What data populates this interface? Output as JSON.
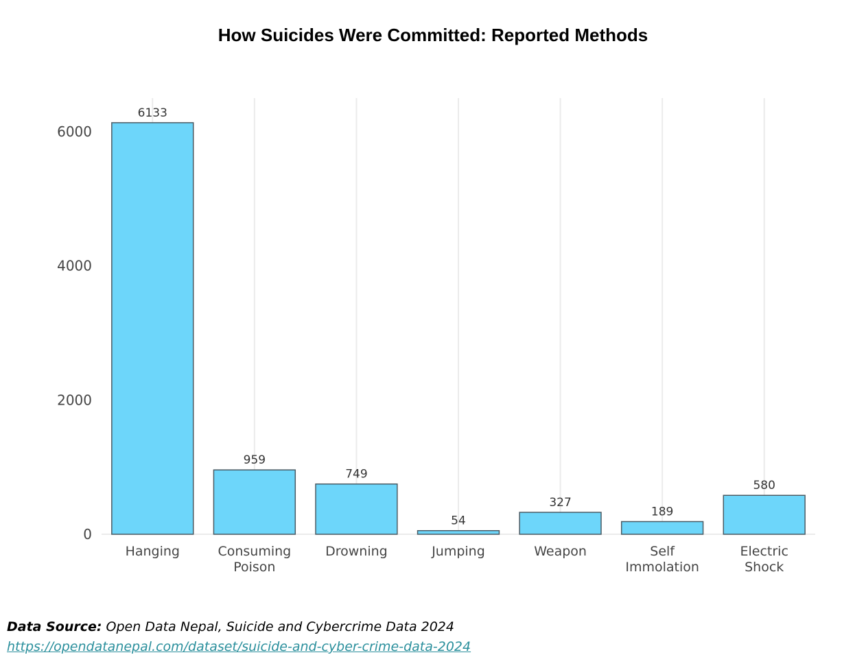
{
  "chart_data": {
    "type": "bar",
    "title": "How Suicides Were Committed: Reported Methods",
    "categories": [
      [
        "Hanging"
      ],
      [
        "Consuming",
        "Poison"
      ],
      [
        "Drowning"
      ],
      [
        "Jumping"
      ],
      [
        "Weapon"
      ],
      [
        "Self",
        "Immolation"
      ],
      [
        "Electric",
        "Shock"
      ]
    ],
    "values": [
      6133,
      959,
      749,
      54,
      327,
      189,
      580
    ],
    "data_labels": [
      "6133",
      "959",
      "749",
      "54",
      "327",
      "189",
      "580"
    ],
    "ylim": [
      0,
      6500
    ],
    "yticks": [
      0,
      2000,
      4000,
      6000
    ],
    "ytick_labels": [
      "0",
      "2000",
      "4000",
      "6000"
    ],
    "xlabel": "",
    "ylabel": "",
    "grid": "vertical",
    "colors": {
      "bar_fill": "#6dd6fa",
      "bar_stroke": "#4a5a63",
      "grid": "#ebebeb",
      "axis_text": "#444444",
      "label_text": "#333333"
    }
  },
  "footer": {
    "source_label": "Data Source:",
    "source_text": " Open Data Nepal, Suicide and Cybercrime Data 2024",
    "source_link": "https://opendatanepal.com/dataset/suicide-and-cyber-crime-data-2024"
  }
}
